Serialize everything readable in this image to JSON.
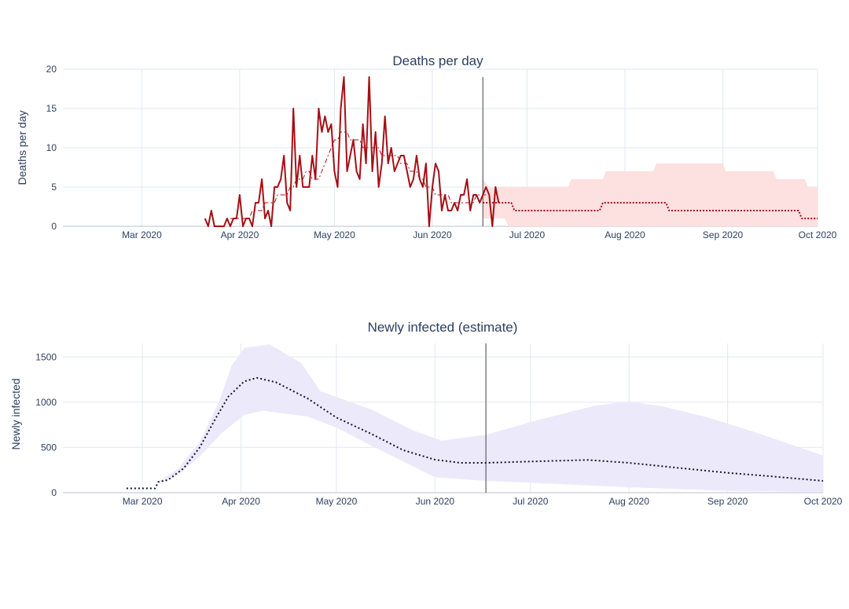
{
  "chart_data": [
    {
      "type": "line",
      "title": "Deaths per day",
      "xlabel": "",
      "ylabel": "Deaths per day",
      "xlim": [
        "2020-02-05",
        "2020-10-01"
      ],
      "ylim": [
        0,
        20
      ],
      "x_ticks": [
        "Mar 2020",
        "Apr 2020",
        "May 2020",
        "Jun 2020",
        "Jul 2020",
        "Aug 2020",
        "Sep 2020",
        "Oct 2020"
      ],
      "x_tick_dates": [
        "2020-03-01",
        "2020-04-01",
        "2020-05-01",
        "2020-06-01",
        "2020-07-01",
        "2020-08-01",
        "2020-09-01",
        "2020-10-01"
      ],
      "y_ticks": [
        0,
        5,
        10,
        15,
        20
      ],
      "grid": true,
      "vline_date": "2020-06-17",
      "colors": {
        "observed": "#a50f15",
        "forecast": "#a50f15",
        "band": "#fde0e0",
        "vline": "#444444",
        "grid": "#e2e8f0"
      },
      "series": [
        {
          "style": "solid",
          "start": "2020-03-21",
          "values": [
            1,
            0,
            2,
            0,
            0,
            0,
            0,
            1,
            0,
            1,
            1,
            4,
            0,
            1,
            1,
            0,
            3,
            3,
            6,
            1,
            2,
            0,
            5,
            5,
            6,
            9,
            3,
            2,
            15,
            5,
            9,
            5,
            5,
            5,
            9,
            6,
            15,
            12,
            14,
            12,
            13,
            7,
            5,
            15,
            19,
            7,
            9,
            11,
            7,
            6,
            13,
            8,
            19,
            7,
            12,
            5,
            8,
            14,
            8,
            10,
            7,
            8,
            9,
            9,
            7,
            5,
            6,
            9,
            6,
            5,
            8,
            0,
            5,
            8,
            7,
            2,
            4,
            2,
            2,
            3,
            2,
            4,
            4,
            6,
            2,
            4,
            4,
            3,
            4,
            5,
            4,
            0,
            5,
            3
          ]
        },
        {
          "style": "dashdot",
          "start": "2020-03-29",
          "values": [
            1,
            1,
            1,
            1,
            1,
            1,
            1,
            2,
            2,
            2,
            2,
            3,
            3,
            3,
            3,
            4,
            4,
            4,
            4,
            5,
            5,
            6,
            6,
            6,
            7,
            7,
            6,
            6,
            6,
            7,
            8,
            9,
            10,
            11,
            11,
            12,
            12,
            12,
            11,
            11,
            11,
            11,
            10,
            10,
            10,
            10,
            10,
            10,
            9,
            9,
            9,
            9,
            9,
            9,
            8,
            8,
            8,
            7,
            7,
            7,
            6,
            6,
            5,
            5,
            5,
            4,
            4,
            4,
            4,
            4,
            3,
            3,
            3,
            3,
            3,
            3,
            3,
            3,
            4,
            4,
            4,
            4
          ]
        },
        {
          "style": "dotted",
          "steps": [
            {
              "date": "2020-06-17",
              "value": 3
            },
            {
              "date": "2020-06-26",
              "value": 3
            },
            {
              "date": "2020-06-27",
              "value": 2
            },
            {
              "date": "2020-07-24",
              "value": 2
            },
            {
              "date": "2020-07-25",
              "value": 3
            },
            {
              "date": "2020-08-14",
              "value": 3
            },
            {
              "date": "2020-08-15",
              "value": 2
            },
            {
              "date": "2020-09-25",
              "value": 2
            },
            {
              "date": "2020-09-26",
              "value": 1
            },
            {
              "date": "2020-10-01",
              "value": 1
            }
          ]
        }
      ],
      "band": {
        "upper_steps": [
          {
            "date": "2020-06-17",
            "value": 6
          },
          {
            "date": "2020-06-19",
            "value": 5
          },
          {
            "date": "2020-07-14",
            "value": 5
          },
          {
            "date": "2020-07-15",
            "value": 6
          },
          {
            "date": "2020-07-25",
            "value": 6
          },
          {
            "date": "2020-07-26",
            "value": 7
          },
          {
            "date": "2020-08-10",
            "value": 7
          },
          {
            "date": "2020-08-11",
            "value": 8
          },
          {
            "date": "2020-09-01",
            "value": 8
          },
          {
            "date": "2020-09-02",
            "value": 7
          },
          {
            "date": "2020-09-17",
            "value": 7
          },
          {
            "date": "2020-09-18",
            "value": 6
          },
          {
            "date": "2020-09-27",
            "value": 6
          },
          {
            "date": "2020-09-28",
            "value": 5
          },
          {
            "date": "2020-10-01",
            "value": 5
          }
        ],
        "lower_steps": [
          {
            "date": "2020-06-17",
            "value": 1
          },
          {
            "date": "2020-06-24",
            "value": 1
          },
          {
            "date": "2020-06-25",
            "value": 0
          },
          {
            "date": "2020-10-01",
            "value": 0
          }
        ]
      }
    },
    {
      "type": "area",
      "title": "Newly infected (estimate)",
      "xlabel": "",
      "ylabel": "Newly infected",
      "xlim": [
        "2020-02-05",
        "2020-10-01"
      ],
      "ylim": [
        0,
        1650
      ],
      "x_ticks": [
        "Mar 2020",
        "Apr 2020",
        "May 2020",
        "Jun 2020",
        "Jul 2020",
        "Aug 2020",
        "Sep 2020",
        "Oct 2020"
      ],
      "x_tick_dates": [
        "2020-03-01",
        "2020-04-01",
        "2020-05-01",
        "2020-06-01",
        "2020-07-01",
        "2020-08-01",
        "2020-09-01",
        "2020-10-01"
      ],
      "y_ticks": [
        0,
        500,
        1000,
        1500
      ],
      "grid": true,
      "vline_date": "2020-06-17",
      "colors": {
        "line": "#111133",
        "band": "#ece9fb",
        "vline": "#444444",
        "grid": "#e2e8f0"
      },
      "series": [
        {
          "style": "dotted",
          "points": [
            {
              "date": "2020-02-25",
              "value": 48
            },
            {
              "date": "2020-03-05",
              "value": 48
            },
            {
              "date": "2020-03-06",
              "value": 120
            },
            {
              "date": "2020-03-09",
              "value": 140
            },
            {
              "date": "2020-03-14",
              "value": 270
            },
            {
              "date": "2020-03-19",
              "value": 500
            },
            {
              "date": "2020-03-24",
              "value": 820
            },
            {
              "date": "2020-03-28",
              "value": 1060
            },
            {
              "date": "2020-04-02",
              "value": 1230
            },
            {
              "date": "2020-04-06",
              "value": 1270
            },
            {
              "date": "2020-04-12",
              "value": 1220
            },
            {
              "date": "2020-04-22",
              "value": 1040
            },
            {
              "date": "2020-05-01",
              "value": 830
            },
            {
              "date": "2020-05-12",
              "value": 650
            },
            {
              "date": "2020-05-22",
              "value": 470
            },
            {
              "date": "2020-06-01",
              "value": 365
            },
            {
              "date": "2020-06-09",
              "value": 330
            },
            {
              "date": "2020-06-17",
              "value": 330
            },
            {
              "date": "2020-07-01",
              "value": 345
            },
            {
              "date": "2020-07-19",
              "value": 362
            },
            {
              "date": "2020-08-01",
              "value": 330
            },
            {
              "date": "2020-08-15",
              "value": 280
            },
            {
              "date": "2020-09-01",
              "value": 220
            },
            {
              "date": "2020-09-15",
              "value": 180
            },
            {
              "date": "2020-10-01",
              "value": 130
            }
          ]
        }
      ],
      "band": {
        "upper": [
          {
            "date": "2020-03-06",
            "value": 120
          },
          {
            "date": "2020-03-12",
            "value": 260
          },
          {
            "date": "2020-03-19",
            "value": 560
          },
          {
            "date": "2020-03-25",
            "value": 1000
          },
          {
            "date": "2020-03-29",
            "value": 1400
          },
          {
            "date": "2020-04-02",
            "value": 1600
          },
          {
            "date": "2020-04-10",
            "value": 1640
          },
          {
            "date": "2020-04-20",
            "value": 1430
          },
          {
            "date": "2020-04-26",
            "value": 1120
          },
          {
            "date": "2020-05-12",
            "value": 920
          },
          {
            "date": "2020-05-25",
            "value": 690
          },
          {
            "date": "2020-06-03",
            "value": 575
          },
          {
            "date": "2020-06-17",
            "value": 640
          },
          {
            "date": "2020-07-03",
            "value": 800
          },
          {
            "date": "2020-07-21",
            "value": 960
          },
          {
            "date": "2020-08-01",
            "value": 1010
          },
          {
            "date": "2020-08-12",
            "value": 950
          },
          {
            "date": "2020-08-26",
            "value": 830
          },
          {
            "date": "2020-09-12",
            "value": 640
          },
          {
            "date": "2020-10-01",
            "value": 410
          }
        ],
        "lower": [
          {
            "date": "2020-03-06",
            "value": 100
          },
          {
            "date": "2020-03-12",
            "value": 190
          },
          {
            "date": "2020-03-19",
            "value": 400
          },
          {
            "date": "2020-03-26",
            "value": 660
          },
          {
            "date": "2020-04-02",
            "value": 860
          },
          {
            "date": "2020-04-08",
            "value": 905
          },
          {
            "date": "2020-04-22",
            "value": 840
          },
          {
            "date": "2020-05-01",
            "value": 720
          },
          {
            "date": "2020-05-12",
            "value": 520
          },
          {
            "date": "2020-06-01",
            "value": 170
          },
          {
            "date": "2020-06-17",
            "value": 130
          },
          {
            "date": "2020-07-01",
            "value": 110
          },
          {
            "date": "2020-08-01",
            "value": 60
          },
          {
            "date": "2020-09-01",
            "value": 20
          },
          {
            "date": "2020-10-01",
            "value": 5
          }
        ]
      }
    }
  ]
}
